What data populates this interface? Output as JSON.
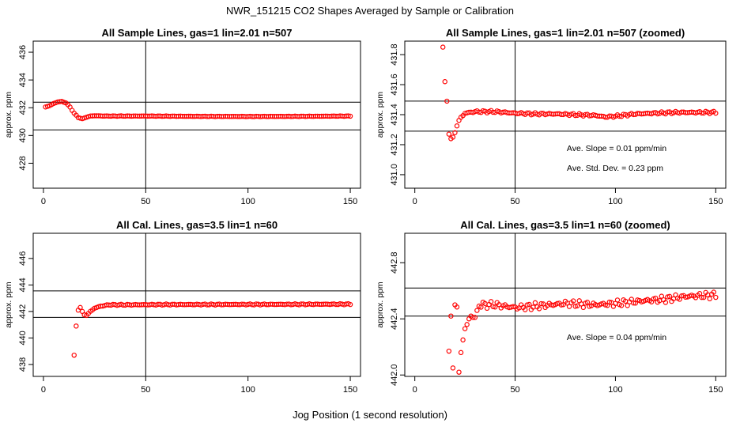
{
  "title": "NWR_151215  CO2 Shapes Averaged by Sample or Calibration",
  "xlabel": "Jog Position (1 second resolution)",
  "chart_data": [
    {
      "type": "scatter",
      "title": "All Sample Lines, gas=1 lin=2.01 n=507",
      "ylabel": "approx. ppm",
      "xlim": [
        -5,
        155
      ],
      "ylim": [
        426.2,
        436.8
      ],
      "xticks": [
        0,
        50,
        100,
        150
      ],
      "yticks": [
        428,
        430,
        432,
        434,
        436
      ],
      "vline": 50,
      "hlines": [
        430.4,
        432.4
      ],
      "annotations": [],
      "points": {
        "x0": 1,
        "x1": 150,
        "anchors": [
          [
            1,
            432.05
          ],
          [
            3,
            432.15
          ],
          [
            5,
            432.3
          ],
          [
            7,
            432.42
          ],
          [
            9,
            432.45
          ],
          [
            11,
            432.35
          ],
          [
            13,
            432.05
          ],
          [
            15,
            431.6
          ],
          [
            17,
            431.3
          ],
          [
            19,
            431.2
          ],
          [
            21,
            431.32
          ],
          [
            23,
            431.4
          ],
          [
            25,
            431.42
          ],
          [
            30,
            431.4
          ],
          [
            50,
            431.4
          ],
          [
            75,
            431.38
          ],
          [
            100,
            431.37
          ],
          [
            125,
            431.38
          ],
          [
            150,
            431.4
          ]
        ],
        "noise": 0.015
      }
    },
    {
      "type": "scatter",
      "title": "All Sample Lines, gas=1 lin=2.01 n=507 (zoomed)",
      "ylabel": "approx. ppm",
      "xlim": [
        -5,
        155
      ],
      "ylim": [
        430.91,
        431.89
      ],
      "xticks": [
        0,
        50,
        100,
        150
      ],
      "yticks": [
        431.0,
        431.2,
        431.4,
        431.6,
        431.8
      ],
      "vline": 50,
      "hlines": [
        431.29,
        431.49
      ],
      "annotations": [
        "Ave. Slope =  0.01  ppm/min",
        "Ave. Std. Dev. =  0.23  ppm"
      ],
      "points": {
        "x0": 14,
        "x1": 150,
        "explicit": [
          [
            14,
            431.85
          ],
          [
            15,
            431.62
          ],
          [
            16,
            431.49
          ],
          [
            17,
            431.27
          ],
          [
            18,
            431.24
          ],
          [
            19,
            431.25
          ],
          [
            20,
            431.28
          ]
        ],
        "anchors": [
          [
            21,
            431.33
          ],
          [
            22,
            431.36
          ],
          [
            23,
            431.38
          ],
          [
            25,
            431.41
          ],
          [
            30,
            431.42
          ],
          [
            40,
            431.42
          ],
          [
            50,
            431.41
          ],
          [
            60,
            431.405
          ],
          [
            70,
            431.405
          ],
          [
            80,
            431.4
          ],
          [
            90,
            431.395
          ],
          [
            95,
            431.385
          ],
          [
            100,
            431.39
          ],
          [
            110,
            431.405
          ],
          [
            120,
            431.41
          ],
          [
            130,
            431.415
          ],
          [
            140,
            431.415
          ],
          [
            150,
            431.415
          ]
        ],
        "noise": 0.008
      }
    },
    {
      "type": "scatter",
      "title": "All Cal. Lines, gas=3.5 lin=1 n=60",
      "ylabel": "approx. ppm",
      "xlim": [
        -5,
        155
      ],
      "ylim": [
        437.1,
        447.9
      ],
      "xticks": [
        0,
        50,
        100,
        150
      ],
      "yticks": [
        438,
        440,
        442,
        444,
        446
      ],
      "vline": 50,
      "hlines": [
        441.55,
        443.55
      ],
      "annotations": [],
      "points": {
        "x0": 15,
        "x1": 150,
        "explicit": [
          [
            15,
            438.7
          ],
          [
            16,
            440.9
          ],
          [
            17,
            442.1
          ],
          [
            18,
            442.3
          ],
          [
            19,
            442.0
          ],
          [
            20,
            441.75
          ],
          [
            21,
            441.7
          ],
          [
            22,
            441.85
          ]
        ],
        "anchors": [
          [
            23,
            442.0
          ],
          [
            25,
            442.25
          ],
          [
            28,
            442.4
          ],
          [
            32,
            442.5
          ],
          [
            40,
            442.5
          ],
          [
            60,
            442.52
          ],
          [
            100,
            442.53
          ],
          [
            150,
            442.55
          ]
        ],
        "noise": 0.04
      }
    },
    {
      "type": "scatter",
      "title": "All Cal. Lines, gas=3.5 lin=1 n=60 (zoomed)",
      "ylabel": "approx. ppm",
      "xlim": [
        -5,
        155
      ],
      "ylim": [
        441.99,
        443.01
      ],
      "xticks": [
        0,
        50,
        100,
        150
      ],
      "yticks": [
        442.0,
        442.4,
        442.8
      ],
      "vline": 50,
      "hlines": [
        442.42,
        442.62
      ],
      "annotations": [
        "Ave. Slope =  0.04  ppm/min"
      ],
      "points": {
        "x0": 17,
        "x1": 150,
        "explicit": [
          [
            17,
            442.17
          ],
          [
            18,
            442.42
          ],
          [
            19,
            442.05
          ],
          [
            22,
            442.02
          ],
          [
            23,
            442.16
          ],
          [
            24,
            442.25
          ],
          [
            25,
            442.33
          ],
          [
            26,
            442.36
          ],
          [
            27,
            442.4
          ],
          [
            28,
            442.42
          ],
          [
            29,
            442.41
          ],
          [
            30,
            442.41
          ],
          [
            31,
            442.46
          ]
        ],
        "anchors": [
          [
            33,
            442.5
          ],
          [
            40,
            442.5
          ],
          [
            50,
            442.48
          ],
          [
            60,
            442.49
          ],
          [
            75,
            442.51
          ],
          [
            90,
            442.5
          ],
          [
            100,
            442.51
          ],
          [
            115,
            442.53
          ],
          [
            125,
            442.54
          ],
          [
            135,
            442.56
          ],
          [
            150,
            442.57
          ]
        ],
        "noise": 0.025
      }
    }
  ]
}
